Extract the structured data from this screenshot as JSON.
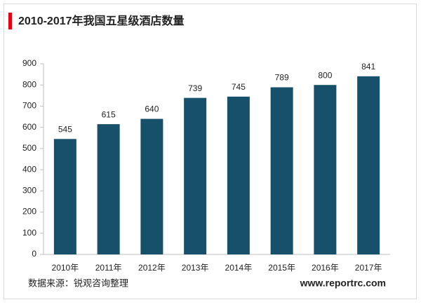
{
  "chart_data": {
    "type": "bar",
    "title": "2010-2017年我国五星级酒店数量",
    "categories": [
      "2010年",
      "2011年",
      "2012年",
      "2013年",
      "2014年",
      "2015年",
      "2016年",
      "2017年"
    ],
    "values": [
      545,
      615,
      640,
      739,
      745,
      789,
      800,
      841
    ],
    "color": "#17506b",
    "ylim": [
      0,
      900
    ],
    "yticks": [
      0,
      100,
      200,
      300,
      400,
      500,
      600,
      700,
      800,
      900
    ],
    "grid": false,
    "data_labels": true,
    "source": "数据来源：锐观咨询整理",
    "website": "www.reportrc.com"
  }
}
